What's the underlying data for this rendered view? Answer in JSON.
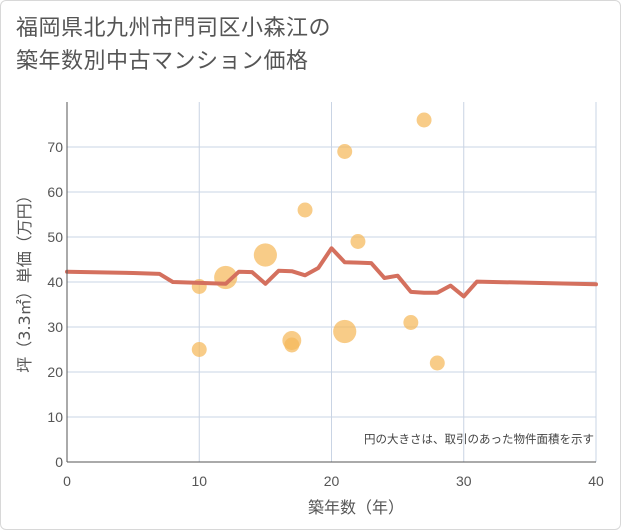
{
  "chart_data": {
    "type": "scatter",
    "title_lines": [
      "福岡県北九州市門司区小森江の",
      "築年数別中古マンション価格"
    ],
    "xlabel": "築年数（年）",
    "ylabel": "坪（3.3㎡）単価（万円）",
    "xlim": [
      0,
      40
    ],
    "ylim": [
      0,
      80
    ],
    "x_ticks": [
      0,
      10,
      20,
      30,
      40
    ],
    "y_ticks": [
      0,
      10,
      20,
      30,
      40,
      50,
      60,
      70
    ],
    "note": "円の大きさは、取引のあった物件面積を示す",
    "colors": {
      "bubble": "#f5b85a",
      "line": "#d4705e",
      "grid": "#c9d4e4",
      "axis": "#555555"
    },
    "scatter_points": [
      {
        "x": 10,
        "y": 39,
        "size": 1.0
      },
      {
        "x": 10,
        "y": 25,
        "size": 1.0
      },
      {
        "x": 12,
        "y": 41,
        "size": 2.4
      },
      {
        "x": 15,
        "y": 46,
        "size": 2.4
      },
      {
        "x": 17,
        "y": 27,
        "size": 1.6
      },
      {
        "x": 17,
        "y": 26,
        "size": 1.0
      },
      {
        "x": 18,
        "y": 56,
        "size": 1.0
      },
      {
        "x": 21,
        "y": 69,
        "size": 1.0
      },
      {
        "x": 21,
        "y": 29,
        "size": 2.4
      },
      {
        "x": 22,
        "y": 49,
        "size": 1.0
      },
      {
        "x": 26,
        "y": 31,
        "size": 1.0
      },
      {
        "x": 27,
        "y": 76,
        "size": 1.0
      },
      {
        "x": 28,
        "y": 22,
        "size": 1.0
      }
    ],
    "trend_line": {
      "x": [
        0,
        5,
        7,
        8,
        10,
        12,
        13,
        14,
        15,
        16,
        17,
        18,
        19,
        20,
        21,
        22,
        23,
        24,
        25,
        26,
        27,
        28,
        29,
        30,
        31,
        40
      ],
      "y": [
        42.3,
        42,
        41.8,
        40,
        39.8,
        39.6,
        42.3,
        42.2,
        39.6,
        42.5,
        42.4,
        41.5,
        43.1,
        47.5,
        44.4,
        44.3,
        44.2,
        40.9,
        41.4,
        37.8,
        37.6,
        37.6,
        39.2,
        36.8,
        40.1,
        39.5
      ]
    }
  }
}
